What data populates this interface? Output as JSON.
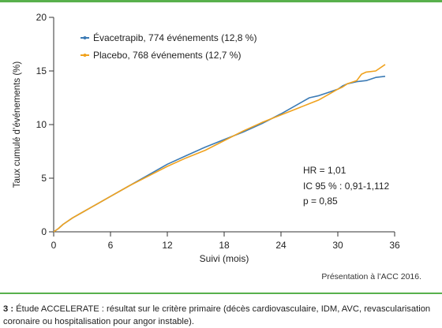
{
  "chart_data": {
    "type": "line",
    "xlabel": "Suivi (mois)",
    "ylabel": "Taux cumulé d’événements (%)",
    "xlim": [
      0,
      36
    ],
    "ylim": [
      0,
      20
    ],
    "xticks": [
      0,
      6,
      12,
      18,
      24,
      30,
      36
    ],
    "yticks": [
      0,
      5,
      10,
      15,
      20
    ],
    "grid": false,
    "legend_position": "top-left",
    "series": [
      {
        "name": "Évacetrapib, 774 événements (12,8 %)",
        "color": "#3c7bb5",
        "x": [
          0,
          0.5,
          1,
          2,
          3,
          4,
          6,
          8,
          10,
          12,
          14,
          16,
          18,
          20,
          22,
          24,
          26,
          27,
          28,
          29,
          30,
          30.5,
          31,
          32,
          33,
          34,
          35
        ],
        "y": [
          0,
          0.3,
          0.7,
          1.3,
          1.8,
          2.3,
          3.3,
          4.3,
          5.3,
          6.3,
          7.1,
          7.9,
          8.6,
          9.3,
          10.1,
          11.0,
          12.0,
          12.5,
          12.7,
          13.0,
          13.3,
          13.6,
          13.8,
          14.0,
          14.1,
          14.4,
          14.5
        ]
      },
      {
        "name": "Placebo, 768 événements (12,7 %)",
        "color": "#f0a21e",
        "x": [
          0,
          0.5,
          1,
          2,
          3,
          4,
          6,
          8,
          10,
          12,
          14,
          16,
          18,
          20,
          22,
          24,
          26,
          28,
          29,
          30,
          30.5,
          31,
          32,
          32.5,
          33,
          34,
          35
        ],
        "y": [
          0,
          0.3,
          0.7,
          1.3,
          1.8,
          2.3,
          3.3,
          4.3,
          5.2,
          6.1,
          6.9,
          7.6,
          8.5,
          9.4,
          10.2,
          10.9,
          11.6,
          12.3,
          12.8,
          13.3,
          13.5,
          13.8,
          14.1,
          14.7,
          14.9,
          15.0,
          15.6
        ]
      }
    ],
    "annotation_lines": [
      "HR = 1,01",
      "IC 95 % : 0,91-1,112",
      "p = 0,85"
    ]
  },
  "source": "Présentation à l’ACC 2016.",
  "caption": {
    "figure_prefix": "3 :",
    "line1": " Étude ACCELERATE : résultat sur le critère primaire (décès cardiovasculaire, IDM, AVC, revascularisation",
    "line2": "coronaire ou hospitalisation pour angor instable)."
  }
}
